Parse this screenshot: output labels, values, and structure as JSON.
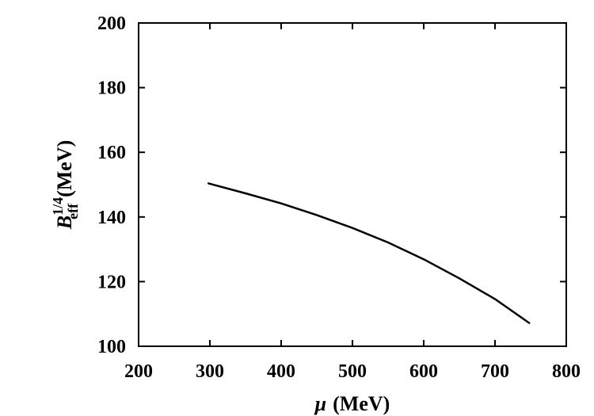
{
  "chart_data": {
    "type": "line",
    "title": "",
    "xlabel": {
      "symbol": "μ",
      "unit": "(MeV)"
    },
    "ylabel": {
      "symbol": "B",
      "subscript": "eff",
      "superscript": "1/4",
      "unit": "(MeV)"
    },
    "xlim": [
      200,
      800
    ],
    "ylim": [
      100,
      200
    ],
    "xticks": [
      200,
      300,
      400,
      500,
      600,
      700,
      800
    ],
    "yticks": [
      100,
      120,
      140,
      160,
      180,
      200
    ],
    "grid": false,
    "series": [
      {
        "x": [
          298,
          350,
          400,
          450,
          500,
          550,
          600,
          650,
          700,
          748
        ],
        "y": [
          150.4,
          147.3,
          144.2,
          140.6,
          136.6,
          132.1,
          126.9,
          121.0,
          114.6,
          107.2
        ]
      }
    ]
  }
}
